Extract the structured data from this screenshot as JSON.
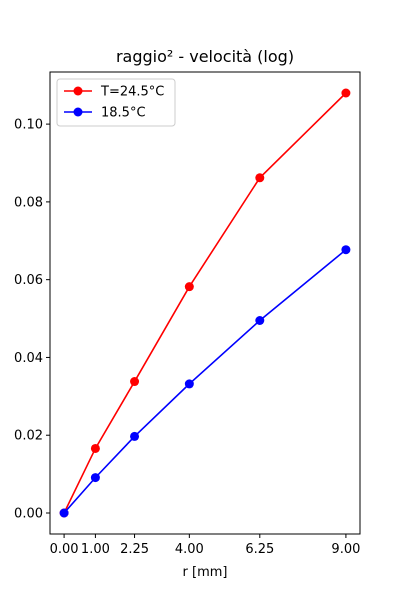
{
  "chart_data": {
    "type": "line",
    "title": "raggio² - velocità (log)",
    "xlabel": "r [mm]",
    "ylabel": "",
    "xlim": [
      -0.45,
      9.45
    ],
    "ylim": [
      -0.0054,
      0.1134
    ],
    "xticks": [
      0.0,
      1.0,
      2.25,
      4.0,
      6.25,
      9.0
    ],
    "xtick_labels": [
      "0.00",
      "1.00",
      "2.25",
      "4.00",
      "6.25",
      "9.00"
    ],
    "yticks": [
      0.0,
      0.02,
      0.04,
      0.06,
      0.08,
      0.1
    ],
    "ytick_labels": [
      "0.00",
      "0.02",
      "0.04",
      "0.06",
      "0.08",
      "0.10"
    ],
    "grid": false,
    "legend_position": "top-left",
    "x": [
      0.0,
      1.0,
      2.25,
      4.0,
      6.25,
      9.0
    ],
    "series": [
      {
        "name": "T=24.5°C",
        "color": "#ff0000",
        "values": [
          0.0,
          0.0166,
          0.0338,
          0.0582,
          0.0862,
          0.108
        ]
      },
      {
        "name": "18.5°C",
        "color": "#0000ff",
        "values": [
          0.0,
          0.0091,
          0.0197,
          0.0332,
          0.0495,
          0.0677
        ]
      }
    ]
  }
}
